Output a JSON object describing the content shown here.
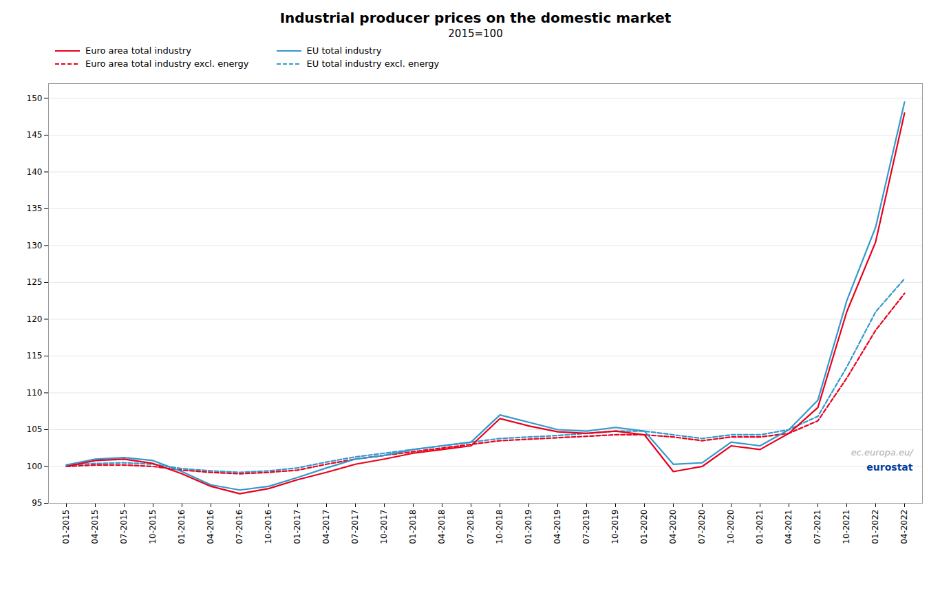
{
  "chart_data": {
    "type": "line",
    "title": "Industrial producer prices on the domestic market",
    "subtitle": "2015=100",
    "categories": [
      "01-2015",
      "04-2015",
      "07-2015",
      "10-2015",
      "01-2016",
      "04-2016",
      "07-2016",
      "10-2016",
      "01-2017",
      "04-2017",
      "07-2017",
      "10-2017",
      "01-2018",
      "04-2018",
      "07-2018",
      "10-2018",
      "01-2019",
      "04-2019",
      "07-2019",
      "10-2019",
      "01-2020",
      "04-2020",
      "07-2020",
      "10-2020",
      "01-2021",
      "04-2021",
      "07-2021",
      "10-2021",
      "01-2022",
      "04-2022"
    ],
    "series": [
      {
        "name": "Euro area total industry",
        "color": "#e8001c",
        "line_style": "solid",
        "values": [
          100.0,
          100.8,
          101.0,
          100.4,
          99.0,
          97.3,
          96.3,
          97.0,
          98.2,
          99.2,
          100.3,
          101.0,
          101.8,
          102.3,
          102.8,
          106.5,
          105.5,
          104.7,
          104.5,
          104.8,
          104.3,
          99.3,
          100.0,
          102.8,
          102.3,
          104.5,
          108.0,
          121.0,
          130.5,
          148.0
        ]
      },
      {
        "name": "EU total industry",
        "color": "#3399cc",
        "line_style": "solid",
        "values": [
          100.2,
          101.0,
          101.2,
          100.8,
          99.3,
          97.5,
          96.8,
          97.3,
          98.5,
          99.8,
          101.0,
          101.5,
          102.3,
          102.8,
          103.3,
          107.0,
          106.0,
          105.0,
          104.8,
          105.3,
          104.8,
          100.3,
          100.5,
          103.3,
          102.8,
          105.0,
          109.0,
          122.5,
          132.5,
          149.5
        ]
      },
      {
        "name": "Euro area total industry excl. energy",
        "color": "#e8001c",
        "line_style": "dashed",
        "values": [
          100.0,
          100.2,
          100.2,
          100.0,
          99.5,
          99.2,
          99.0,
          99.2,
          99.5,
          100.3,
          101.0,
          101.5,
          102.0,
          102.5,
          103.0,
          103.5,
          103.7,
          103.9,
          104.1,
          104.3,
          104.3,
          104.0,
          103.5,
          104.0,
          104.0,
          104.5,
          106.2,
          112.0,
          118.5,
          123.5
        ]
      },
      {
        "name": "EU total industry excl. energy",
        "color": "#3399cc",
        "line_style": "dashed",
        "values": [
          100.2,
          100.4,
          100.5,
          100.3,
          99.7,
          99.4,
          99.2,
          99.4,
          99.8,
          100.6,
          101.3,
          101.8,
          102.3,
          102.8,
          103.3,
          103.8,
          104.0,
          104.2,
          104.5,
          104.8,
          104.8,
          104.3,
          103.8,
          104.3,
          104.3,
          105.0,
          106.8,
          113.5,
          121.0,
          125.5
        ]
      }
    ],
    "ylim": [
      95,
      152
    ],
    "yticks": [
      95,
      100,
      105,
      110,
      115,
      120,
      125,
      130,
      135,
      140,
      145,
      150
    ],
    "grid": true,
    "legend": "top",
    "annotations": [
      "ec.europa.eu/",
      "eurostat"
    ]
  }
}
